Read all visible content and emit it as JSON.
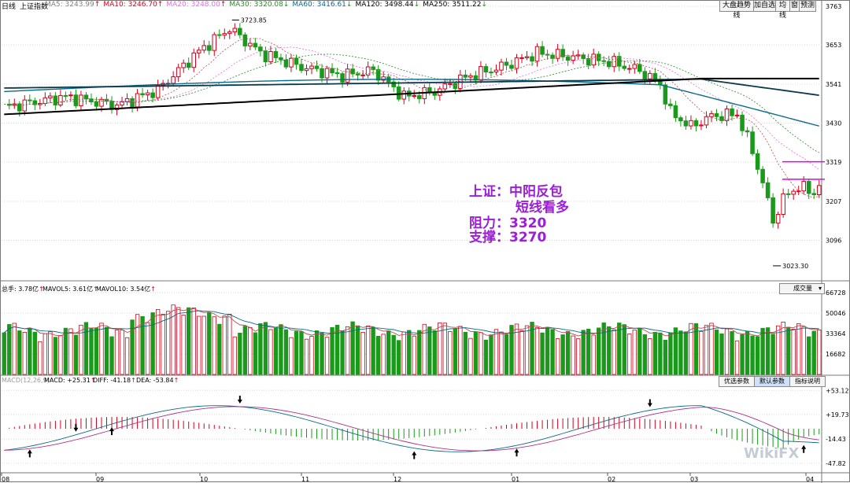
{
  "header": {
    "period": "日线",
    "index_name": "上证指数",
    "ma": [
      {
        "label": "MA5: 3243.99",
        "arrow": "↑",
        "color": "#808080"
      },
      {
        "label": "MA10: 3246.70",
        "arrow": "↑",
        "color": "#d0021b"
      },
      {
        "label": "MA20: 3248.00",
        "arrow": "↑",
        "color": "#e070e0"
      },
      {
        "label": "MA30: 3320.08",
        "arrow": "↓",
        "color": "#2a8a2a"
      },
      {
        "label": "MA60: 3416.61",
        "arrow": "↓",
        "color": "#0a6a8a"
      },
      {
        "label": "MA120: 3498.44",
        "arrow": "↓",
        "color": "#000000"
      },
      {
        "label": "MA250: 3511.22",
        "arrow": "↓",
        "color": "#000000"
      }
    ]
  },
  "toolbar": {
    "b1": "大盘趋势线",
    "b2": "加自选",
    "b3": "均线",
    "b4": "窗",
    "b5": "预测"
  },
  "annotation": {
    "line1": "上证：中阳反包",
    "line2": "短线看多",
    "line3": "阻力：3320",
    "line4": "支撑：3270"
  },
  "price_marks": {
    "high": "3723.85",
    "low": "3023.30"
  },
  "volume_header": {
    "total": "总手: 3.78亿",
    "total_arrow": "↑",
    "mavol5": "MAVOL5: 3.61亿",
    "mavol5_arrow": "↑",
    "mavol10": "MAVOL10: 3.54亿",
    "mavol10_arrow": "↑",
    "dropdown": "成交量"
  },
  "macd_header": {
    "name": "MACD(12,26,9)",
    "macd": "MACD: +25.31",
    "macd_arrow": "↑",
    "diff": "DIFF: -41.18",
    "diff_arrow": "↑",
    "dea": "DEA: -53.84",
    "dea_arrow": "↑",
    "btn1": "优选参数",
    "btn2": "默认参数",
    "btn3": "指标说明"
  },
  "watermark": "WikiFX",
  "colors": {
    "up": "#d0021b",
    "down": "#1a9a1a",
    "grid": "#d8d8d8",
    "annot": "#9b1fd6",
    "resist": "#e600e6"
  },
  "chart_data": [
    {
      "type": "candlestick",
      "title": "上证指数 日线",
      "y_ticks": [
        "3763",
        "3653",
        "3541",
        "3430",
        "3319",
        "3207",
        "3096"
      ],
      "ylim": [
        2985,
        3763
      ],
      "x_ticks": [
        "08",
        "09",
        "10",
        "11",
        "12",
        "01",
        "02",
        "03",
        "04"
      ],
      "highlights": {
        "high": 3723.85,
        "low": 3023.3
      },
      "resistance": 3320,
      "support": 3270,
      "candles_count": 160,
      "ma_series": [
        "MA5",
        "MA10",
        "MA20",
        "MA30",
        "MA60",
        "MA120",
        "MA250"
      ]
    },
    {
      "type": "bar",
      "title": "成交量",
      "y_ticks": [
        "66728",
        "50046",
        "33364",
        "16682"
      ],
      "ylim": [
        0,
        66728
      ],
      "series": [
        {
          "name": "MAVOL5"
        },
        {
          "name": "MAVOL10"
        }
      ]
    },
    {
      "type": "bar",
      "title": "MACD(12,26,9)",
      "y_ticks": [
        "+53.12",
        "+19.73",
        "-14.43",
        "-47.82"
      ],
      "ylim": [
        -60,
        60
      ],
      "series": [
        {
          "name": "DIFF"
        },
        {
          "name": "DEA"
        },
        {
          "name": "MACD"
        }
      ]
    }
  ]
}
